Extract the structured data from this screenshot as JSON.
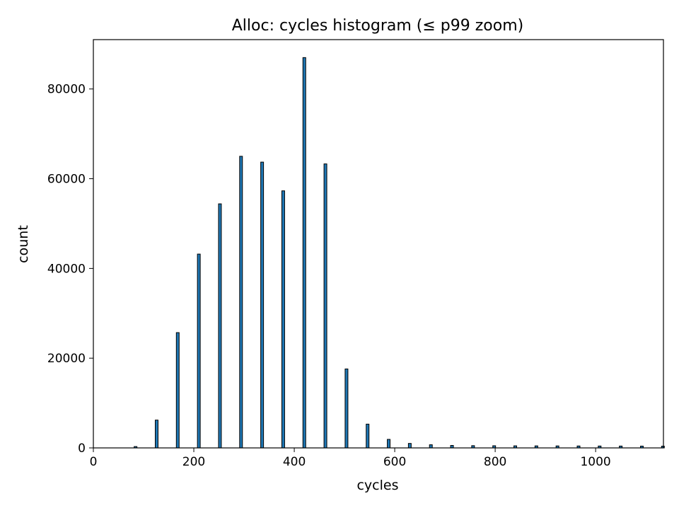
{
  "chart_data": {
    "type": "bar",
    "title": "Alloc: cycles histogram (≤ p99 zoom)",
    "xlabel": "cycles",
    "ylabel": "count",
    "xlim": [
      0,
      1135
    ],
    "ylim": [
      0,
      91000
    ],
    "xticks": [
      0,
      200,
      400,
      600,
      800,
      1000
    ],
    "yticks": [
      0,
      20000,
      40000,
      60000,
      80000
    ],
    "xtick_labels": [
      "0",
      "200",
      "400",
      "600",
      "800",
      "1000"
    ],
    "ytick_labels": [
      "0",
      "20000",
      "40000",
      "60000",
      "80000"
    ],
    "grid": false,
    "bar_color": "#1f77b4",
    "edge_color": "#000000",
    "bin_width": 5.6,
    "series": [
      {
        "x": [
          84,
          126,
          168,
          210,
          252,
          294,
          336,
          378,
          420,
          462,
          504,
          546,
          588,
          630,
          672,
          714,
          756,
          798,
          840,
          882,
          924,
          966,
          1008,
          1050,
          1092,
          1134
        ],
        "values": [
          300,
          6200,
          25700,
          43200,
          54400,
          65000,
          63700,
          57300,
          87000,
          63300,
          17600,
          5300,
          1900,
          1000,
          700,
          550,
          500,
          480,
          460,
          450,
          440,
          430,
          420,
          410,
          400,
          390
        ]
      }
    ]
  }
}
